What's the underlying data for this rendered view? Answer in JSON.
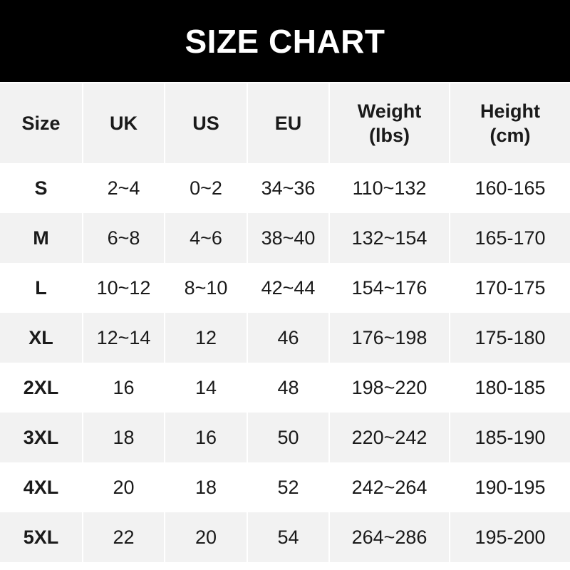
{
  "title": "SIZE CHART",
  "headers": [
    {
      "line1": "Size",
      "line2": ""
    },
    {
      "line1": "UK",
      "line2": ""
    },
    {
      "line1": "US",
      "line2": ""
    },
    {
      "line1": "EU",
      "line2": ""
    },
    {
      "line1": "Weight",
      "line2": "(lbs)"
    },
    {
      "line1": "Height",
      "line2": "(cm)"
    }
  ],
  "rows": [
    [
      "S",
      "2~4",
      "0~2",
      "34~36",
      "110~132",
      "160-165"
    ],
    [
      "M",
      "6~8",
      "4~6",
      "38~40",
      "132~154",
      "165-170"
    ],
    [
      "L",
      "10~12",
      "8~10",
      "42~44",
      "154~176",
      "170-175"
    ],
    [
      "XL",
      "12~14",
      "12",
      "46",
      "176~198",
      "175-180"
    ],
    [
      "2XL",
      "16",
      "14",
      "48",
      "198~220",
      "180-185"
    ],
    [
      "3XL",
      "18",
      "16",
      "50",
      "220~242",
      "185-190"
    ],
    [
      "4XL",
      "20",
      "18",
      "52",
      "242~264",
      "190-195"
    ],
    [
      "5XL",
      "22",
      "20",
      "54",
      "264~286",
      "195-200"
    ]
  ],
  "colors": {
    "title_bg": "#000000",
    "stripe": "#f2f2f2"
  }
}
